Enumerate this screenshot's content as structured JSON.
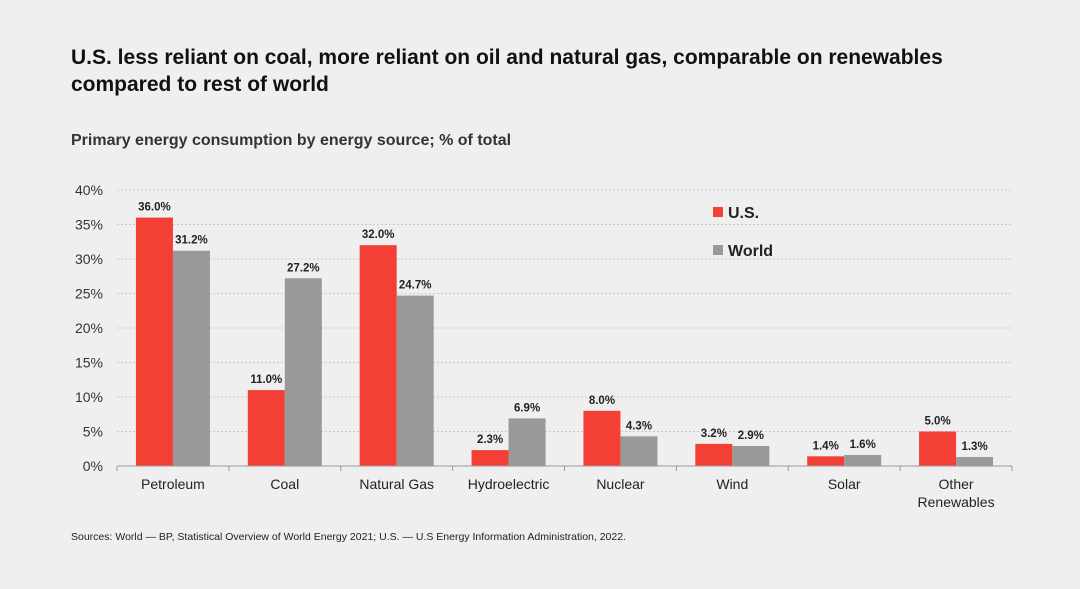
{
  "title": "U.S. less reliant on coal, more reliant on oil and natural gas, comparable on renewables compared to rest of world",
  "subtitle": "Primary energy consumption by energy source; % of total",
  "source": "Sources: World — BP, Statistical Overview of World Energy 2021; U.S. — U.S Energy Information Administration, 2022.",
  "colors": {
    "us": "#f43f34",
    "world": "#999999",
    "grid": "#c9c9c9",
    "axis": "#999999"
  },
  "chart_data": {
    "type": "bar",
    "title": "Primary energy consumption by energy source; % of total",
    "categories": [
      "Petroleum",
      "Coal",
      "Natural Gas",
      "Hydroelectric",
      "Nuclear",
      "Wind",
      "Solar",
      "Other Renewables"
    ],
    "category_lines": [
      [
        "Petroleum"
      ],
      [
        "Coal"
      ],
      [
        "Natural Gas"
      ],
      [
        "Hydroelectric"
      ],
      [
        "Nuclear"
      ],
      [
        "Wind"
      ],
      [
        "Solar"
      ],
      [
        "Other",
        "Renewables"
      ]
    ],
    "series": [
      {
        "name": "U.S.",
        "values": [
          36.0,
          11.0,
          32.0,
          2.3,
          8.0,
          3.2,
          1.4,
          5.0
        ],
        "labels": [
          "36.0%",
          "11.0%",
          "32.0%",
          "2.3%",
          "8.0%",
          "3.2%",
          "1.4%",
          "5.0%"
        ]
      },
      {
        "name": "World",
        "values": [
          31.2,
          27.2,
          24.7,
          6.9,
          4.3,
          2.9,
          1.6,
          1.3
        ],
        "labels": [
          "31.2%",
          "27.2%",
          "24.7%",
          "6.9%",
          "4.3%",
          "2.9%",
          "1.6%",
          "1.3%"
        ]
      }
    ],
    "yticks": [
      "0%",
      "5%",
      "10%",
      "15%",
      "20%",
      "25%",
      "30%",
      "35%",
      "40%"
    ],
    "ylim": [
      0,
      40
    ],
    "xlabel": "",
    "ylabel": "",
    "grid": true,
    "legend": "top-right"
  }
}
